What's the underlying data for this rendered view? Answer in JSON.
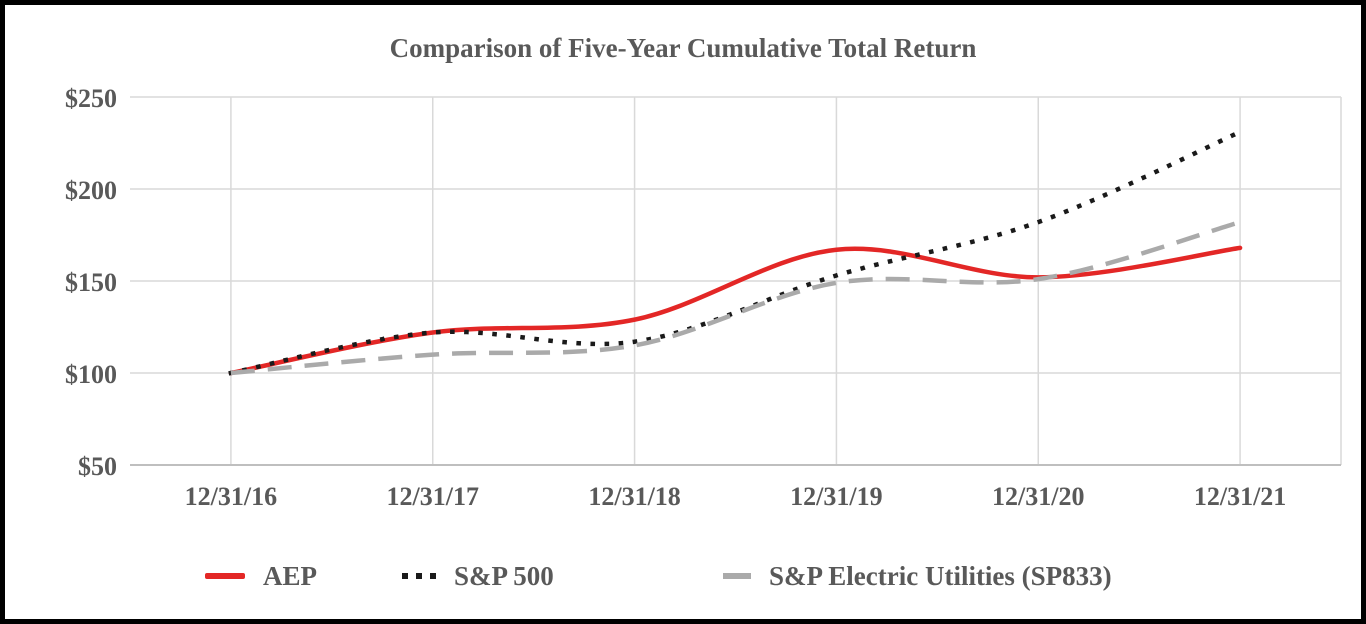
{
  "title": "Comparison of Five-Year Cumulative Total Return",
  "chart_data": {
    "type": "line",
    "title": "Comparison of Five-Year Cumulative Total Return",
    "x": [
      "12/31/16",
      "12/31/17",
      "12/31/18",
      "12/31/19",
      "12/31/20",
      "12/31/21"
    ],
    "series": [
      {
        "name": "AEP",
        "color": "#E32726",
        "line_style": "solid",
        "values": [
          100,
          122,
          129,
          167,
          152,
          168
        ]
      },
      {
        "name": "S&P 500",
        "color": "#1A1A1A",
        "line_style": "dotted",
        "values": [
          100,
          122,
          117,
          153,
          182,
          231
        ]
      },
      {
        "name": "S&P Electric Utilities (SP833)",
        "color": "#AAAAAA",
        "line_style": "dashed",
        "values": [
          100,
          110,
          115,
          149,
          151,
          182
        ]
      }
    ],
    "y_ticks": [
      {
        "label": "$250",
        "value": 250
      },
      {
        "label": "$200",
        "value": 200
      },
      {
        "label": "$150",
        "value": 150
      },
      {
        "label": "$100",
        "value": 100
      },
      {
        "label": "$50",
        "value": 50
      }
    ],
    "ylim": [
      50,
      250
    ],
    "grid": true,
    "smooth": true,
    "legend_position": "bottom"
  },
  "colors": {
    "text": "#595959",
    "gridline": "#D9D9D9",
    "axis_line": "#BFBFBF",
    "background": "#FFFFFF",
    "border": "#000000"
  }
}
